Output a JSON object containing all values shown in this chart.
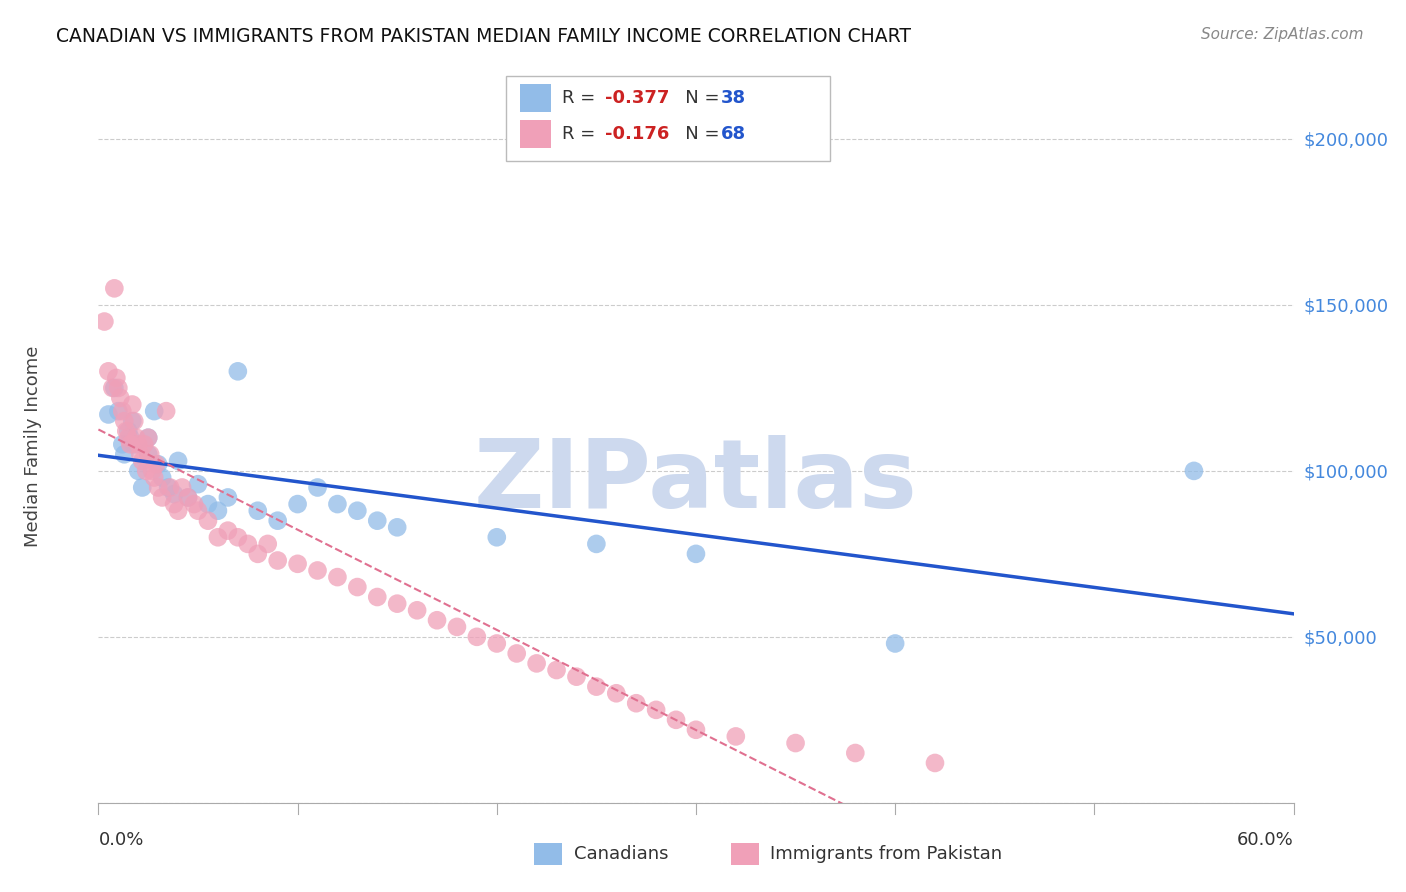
{
  "title": "CANADIAN VS IMMIGRANTS FROM PAKISTAN MEDIAN FAMILY INCOME CORRELATION CHART",
  "source": "Source: ZipAtlas.com",
  "ylabel": "Median Family Income",
  "x_range": [
    0.0,
    0.6
  ],
  "y_range": [
    0,
    215000
  ],
  "y_ticks": [
    0,
    50000,
    100000,
    150000,
    200000
  ],
  "y_tick_labels": [
    "",
    "$50,000",
    "$100,000",
    "$150,000",
    "$200,000"
  ],
  "canadians_R": "-0.377",
  "canadians_N": "38",
  "pakistan_R": "-0.176",
  "pakistan_N": "68",
  "canadians_color": "#92bce8",
  "pakistan_color": "#f0a0b8",
  "canadians_line_color": "#2255cc",
  "pakistan_line_color": "#e07090",
  "bg_color": "#ffffff",
  "grid_color": "#cccccc",
  "watermark_color": "#cdd9ee",
  "watermark_text": "ZIPatlas",
  "legend_label1": "Canadians",
  "legend_label2": "Immigrants from Pakistan",
  "canadians_x": [
    0.005,
    0.008,
    0.01,
    0.012,
    0.013,
    0.015,
    0.016,
    0.017,
    0.018,
    0.02,
    0.022,
    0.025,
    0.025,
    0.028,
    0.03,
    0.032,
    0.035,
    0.038,
    0.04,
    0.045,
    0.05,
    0.055,
    0.06,
    0.065,
    0.07,
    0.08,
    0.09,
    0.1,
    0.11,
    0.12,
    0.13,
    0.14,
    0.15,
    0.2,
    0.25,
    0.3,
    0.4,
    0.55
  ],
  "canadians_y": [
    117000,
    125000,
    118000,
    108000,
    105000,
    112000,
    110000,
    115000,
    108000,
    100000,
    95000,
    110000,
    105000,
    118000,
    102000,
    98000,
    95000,
    93000,
    103000,
    92000,
    96000,
    90000,
    88000,
    92000,
    130000,
    88000,
    85000,
    90000,
    95000,
    90000,
    88000,
    85000,
    83000,
    80000,
    78000,
    75000,
    48000,
    100000
  ],
  "pakistan_x": [
    0.003,
    0.005,
    0.007,
    0.008,
    0.009,
    0.01,
    0.011,
    0.012,
    0.013,
    0.014,
    0.015,
    0.016,
    0.017,
    0.018,
    0.019,
    0.02,
    0.021,
    0.022,
    0.023,
    0.024,
    0.025,
    0.026,
    0.027,
    0.028,
    0.029,
    0.03,
    0.032,
    0.034,
    0.036,
    0.038,
    0.04,
    0.042,
    0.045,
    0.048,
    0.05,
    0.055,
    0.06,
    0.065,
    0.07,
    0.075,
    0.08,
    0.085,
    0.09,
    0.1,
    0.11,
    0.12,
    0.13,
    0.14,
    0.15,
    0.16,
    0.17,
    0.18,
    0.19,
    0.2,
    0.21,
    0.22,
    0.23,
    0.24,
    0.25,
    0.26,
    0.27,
    0.28,
    0.29,
    0.3,
    0.32,
    0.35,
    0.38,
    0.42
  ],
  "pakistan_y": [
    145000,
    130000,
    125000,
    155000,
    128000,
    125000,
    122000,
    118000,
    115000,
    112000,
    110000,
    108000,
    120000,
    115000,
    110000,
    108000,
    105000,
    103000,
    108000,
    100000,
    110000,
    105000,
    100000,
    98000,
    102000,
    95000,
    92000,
    118000,
    95000,
    90000,
    88000,
    95000,
    92000,
    90000,
    88000,
    85000,
    80000,
    82000,
    80000,
    78000,
    75000,
    78000,
    73000,
    72000,
    70000,
    68000,
    65000,
    62000,
    60000,
    58000,
    55000,
    53000,
    50000,
    48000,
    45000,
    42000,
    40000,
    38000,
    35000,
    33000,
    30000,
    28000,
    25000,
    22000,
    20000,
    18000,
    15000,
    12000
  ]
}
